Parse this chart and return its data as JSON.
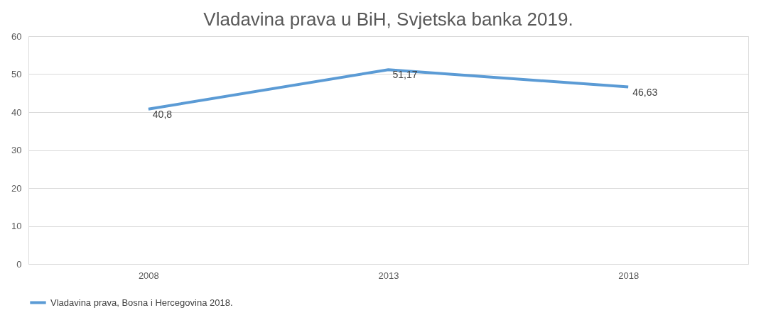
{
  "chart_data": {
    "type": "line",
    "title": "Vladavina prava u BiH, Svjetska banka 2019.",
    "categories": [
      "2008",
      "2013",
      "2018"
    ],
    "series": [
      {
        "name": "Vladavina prava, Bosna i Hercegovina 2018.",
        "color": "#5b9bd5",
        "values": [
          40.8,
          51.17,
          46.63
        ],
        "value_labels": [
          "40,8",
          "51,17",
          "46,63"
        ]
      }
    ],
    "ylim": [
      0,
      60
    ],
    "yticks": [
      0,
      10,
      20,
      30,
      40,
      50,
      60
    ],
    "grid": "y",
    "legend": "bottom",
    "marker": "none",
    "line_style": "solid"
  }
}
